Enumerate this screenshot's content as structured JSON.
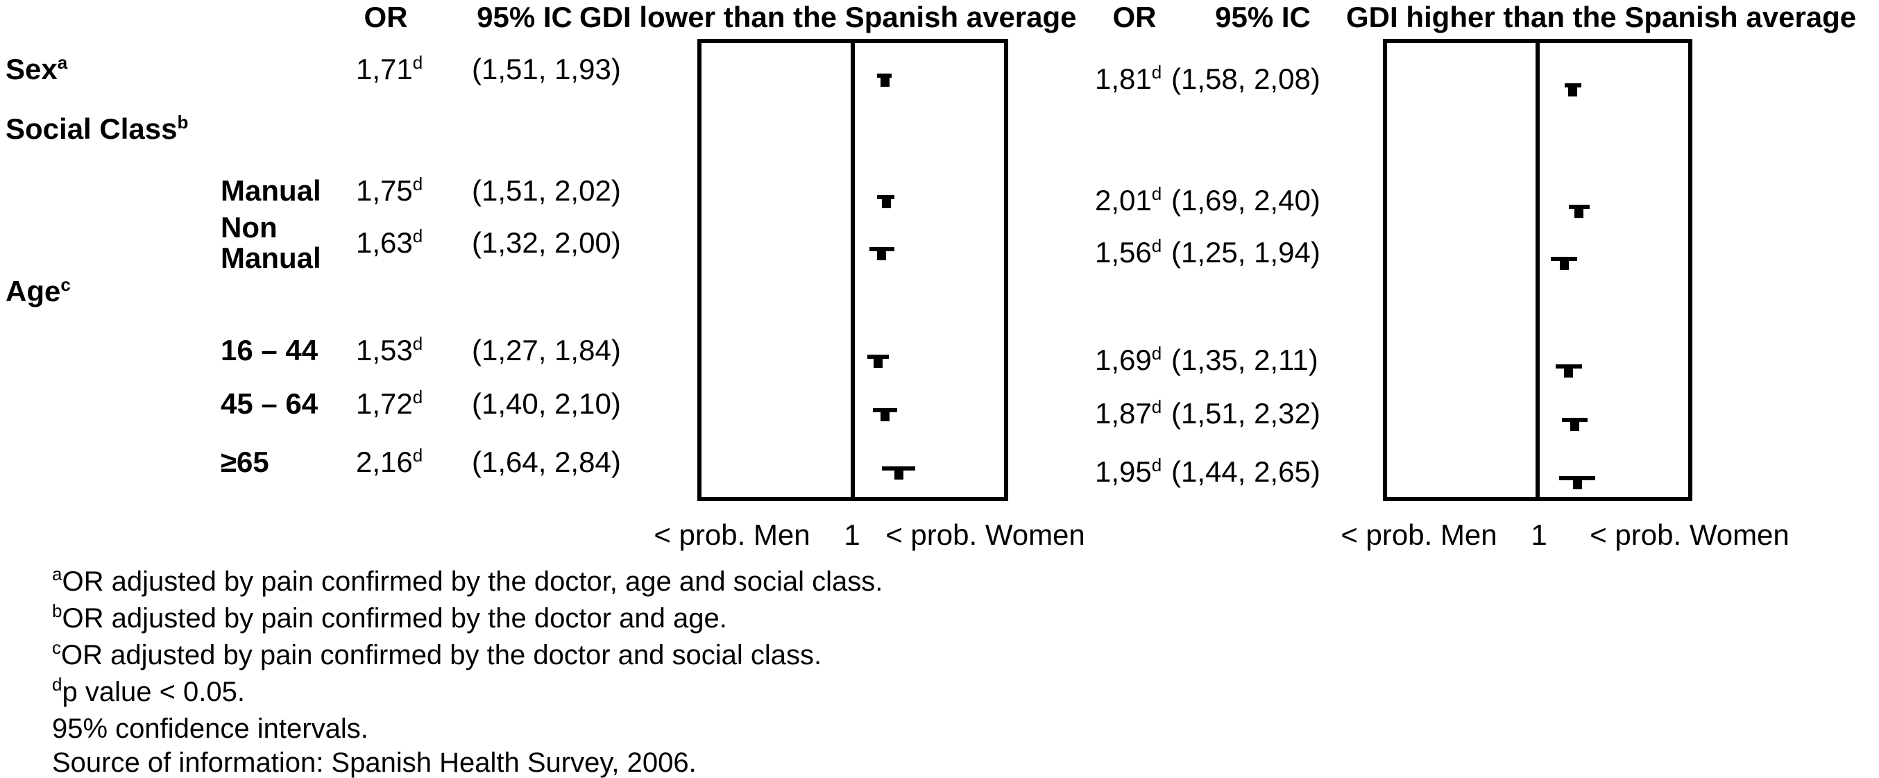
{
  "header": {
    "or": "OR",
    "ci": "95% IC",
    "left_title": "GDI lower than the Spanish average",
    "right_title": "GDI higher than the Spanish average"
  },
  "footnotes": [
    {
      "sup": "a",
      "text": "OR adjusted by pain confirmed by the doctor, age and social class."
    },
    {
      "sup": "b",
      "text": "OR adjusted by pain confirmed by the doctor and age."
    },
    {
      "sup": "c",
      "text": "OR adjusted by pain confirmed by the doctor and social class."
    },
    {
      "sup": "d",
      "text": "p value < 0.05."
    },
    {
      "sup": "",
      "text": "95% confidence intervals."
    },
    {
      "sup": "",
      "text": "Source of information: Spanish Health Survey, 2006."
    }
  ],
  "chart_data": {
    "type": "forest",
    "scale": "log",
    "reference_value": 1,
    "significance_note": "d = p value < 0.05",
    "rows": [
      {
        "label": "Sex",
        "sup": "a",
        "level": "group",
        "has_data": true
      },
      {
        "label": "Social Class",
        "sup": "b",
        "level": "group",
        "has_data": false
      },
      {
        "label": "Manual",
        "sup": "",
        "level": "sub",
        "has_data": true
      },
      {
        "label": "Non Manual",
        "sup": "",
        "level": "sub",
        "has_data": true
      },
      {
        "label": "Age",
        "sup": "c",
        "level": "group",
        "has_data": false
      },
      {
        "label": "16 – 44",
        "sup": "",
        "level": "sub",
        "has_data": true
      },
      {
        "label": "45 – 64",
        "sup": "",
        "level": "sub",
        "has_data": true
      },
      {
        "label": "≥65",
        "sup": "",
        "level": "sub",
        "has_data": true
      }
    ],
    "panels": [
      {
        "title": "GDI lower than the Spanish average",
        "or_header": "OR",
        "ci_header": "95% IC",
        "axis_left": "< prob. Men",
        "axis_center": "1",
        "axis_right": "< prob. Women",
        "values": [
          {
            "row": "Sex",
            "or": 1.71,
            "lo": 1.51,
            "hi": 1.93,
            "or_text": "1,71",
            "ci_text": "(1,51, 1,93)",
            "sig": "d"
          },
          {
            "row": "Manual",
            "or": 1.75,
            "lo": 1.51,
            "hi": 2.02,
            "or_text": "1,75",
            "ci_text": "(1,51, 2,02)",
            "sig": "d"
          },
          {
            "row": "Non Manual",
            "or": 1.63,
            "lo": 1.32,
            "hi": 2.0,
            "or_text": "1,63",
            "ci_text": "(1,32, 2,00)",
            "sig": "d"
          },
          {
            "row": "16 – 44",
            "or": 1.53,
            "lo": 1.27,
            "hi": 1.84,
            "or_text": "1,53",
            "ci_text": "(1,27, 1,84)",
            "sig": "d"
          },
          {
            "row": "45 – 64",
            "or": 1.72,
            "lo": 1.4,
            "hi": 2.1,
            "or_text": "1,72",
            "ci_text": "(1,40, 2,10)",
            "sig": "d"
          },
          {
            "row": "≥65",
            "or": 2.16,
            "lo": 1.64,
            "hi": 2.84,
            "or_text": "2,16",
            "ci_text": "(1,64, 2,84)",
            "sig": "d"
          }
        ]
      },
      {
        "title": "GDI higher than the Spanish average",
        "or_header": "OR",
        "ci_header": "95% IC",
        "axis_left": "< prob. Men",
        "axis_center": "1",
        "axis_right": "< prob. Women",
        "values": [
          {
            "row": "Sex",
            "or": 1.81,
            "lo": 1.58,
            "hi": 2.08,
            "or_text": "1,81",
            "ci_text": "(1,58, 2,08)",
            "sig": "d"
          },
          {
            "row": "Manual",
            "or": 2.01,
            "lo": 1.69,
            "hi": 2.4,
            "or_text": "2,01",
            "ci_text": "(1,69, 2,40)",
            "sig": "d"
          },
          {
            "row": "Non Manual",
            "or": 1.56,
            "lo": 1.25,
            "hi": 1.94,
            "or_text": "1,56",
            "ci_text": "(1,25, 1,94)",
            "sig": "d"
          },
          {
            "row": "16 – 44",
            "or": 1.69,
            "lo": 1.35,
            "hi": 2.11,
            "or_text": "1,69",
            "ci_text": "(1,35, 2,11)",
            "sig": "d"
          },
          {
            "row": "45 – 64",
            "or": 1.87,
            "lo": 1.51,
            "hi": 2.32,
            "or_text": "1,87",
            "ci_text": "(1,51, 2,32)",
            "sig": "d"
          },
          {
            "row": "≥65",
            "or": 1.95,
            "lo": 1.44,
            "hi": 2.65,
            "or_text": "1,95",
            "ci_text": "(1,44, 2,65)",
            "sig": "d"
          }
        ]
      }
    ]
  }
}
